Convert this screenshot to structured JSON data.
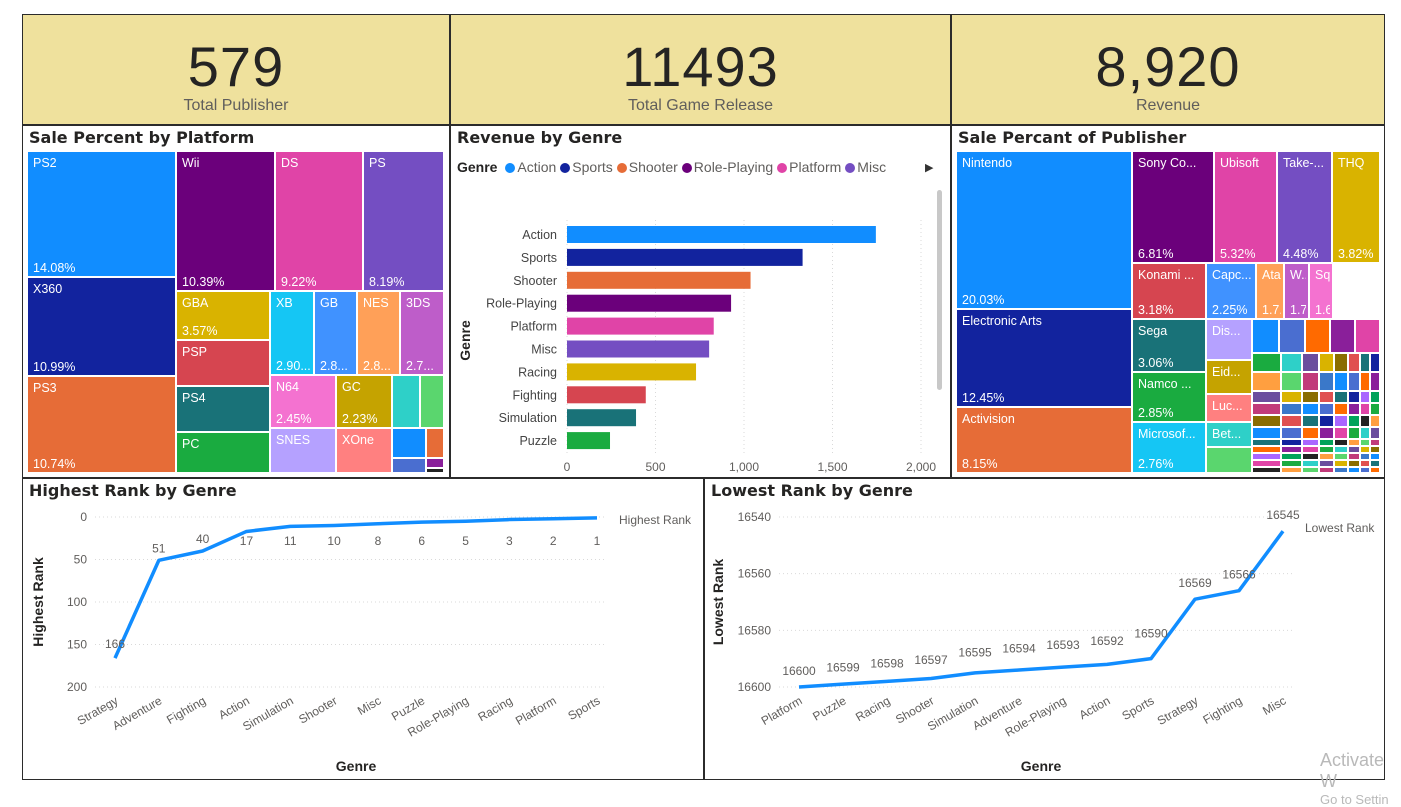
{
  "kpis": {
    "publisher": {
      "value": "579",
      "label": "Total Publisher"
    },
    "release": {
      "value": "11493",
      "label": "Total Game Release"
    },
    "revenue": {
      "value": "8,920",
      "label": "Revenue"
    }
  },
  "platform_panel": {
    "title": "Sale Percent by Platform",
    "cells": [
      {
        "name": "PS2",
        "pct": "14.08%",
        "color": "#118dff"
      },
      {
        "name": "X360",
        "pct": "10.99%",
        "color": "#12239e"
      },
      {
        "name": "PS3",
        "pct": "10.74%",
        "color": "#e66c37"
      },
      {
        "name": "Wii",
        "pct": "10.39%",
        "color": "#6b007b"
      },
      {
        "name": "DS",
        "pct": "9.22%",
        "color": "#e044a7"
      },
      {
        "name": "PS",
        "pct": "8.19%",
        "color": "#744ec2"
      },
      {
        "name": "GBA",
        "pct": "3.57%",
        "color": "#d9b300"
      },
      {
        "name": "PSP",
        "pct": "",
        "color": "#d64550"
      },
      {
        "name": "PS4",
        "pct": "",
        "color": "#197278"
      },
      {
        "name": "PC",
        "pct": "",
        "color": "#1aab40"
      },
      {
        "name": "XB",
        "pct": "2.90...",
        "color": "#15c6f4"
      },
      {
        "name": "GB",
        "pct": "2.8...",
        "color": "#4092ff"
      },
      {
        "name": "NES",
        "pct": "2.8...",
        "color": "#ffa058"
      },
      {
        "name": "3DS",
        "pct": "2.7...",
        "color": "#be5dc9"
      },
      {
        "name": "N64",
        "pct": "2.45%",
        "color": "#f472d0"
      },
      {
        "name": "GC",
        "pct": "2.23%",
        "color": "#c5a300"
      },
      {
        "name": "SNES",
        "pct": "",
        "color": "#b5a1ff"
      },
      {
        "name": "XOne",
        "pct": "",
        "color": "#ff8080"
      }
    ]
  },
  "genre_panel": {
    "title": "Revenue by Genre",
    "legend_title": "Genre",
    "legend": [
      {
        "name": "Action",
        "color": "#118dff"
      },
      {
        "name": "Sports",
        "color": "#12239e"
      },
      {
        "name": "Shooter",
        "color": "#e66c37"
      },
      {
        "name": "Role-Playing",
        "color": "#6b007b"
      },
      {
        "name": "Platform",
        "color": "#e044a7"
      },
      {
        "name": "Misc",
        "color": "#744ec2"
      }
    ]
  },
  "publisher_panel": {
    "title": "Sale Percant of Publisher",
    "cells": [
      {
        "name": "Nintendo",
        "pct": "20.03%",
        "color": "#118dff"
      },
      {
        "name": "Electronic Arts",
        "pct": "12.45%",
        "color": "#12239e"
      },
      {
        "name": "Activision",
        "pct": "8.15%",
        "color": "#e66c37"
      },
      {
        "name": "Sony Co...",
        "pct": "6.81%",
        "color": "#6b007b"
      },
      {
        "name": "Ubisoft",
        "pct": "5.32%",
        "color": "#e044a7"
      },
      {
        "name": "Take-...",
        "pct": "4.48%",
        "color": "#744ec2"
      },
      {
        "name": "THQ",
        "pct": "3.82%",
        "color": "#d9b300"
      },
      {
        "name": "Konami ...",
        "pct": "3.18%",
        "color": "#d64550"
      },
      {
        "name": "Capc...",
        "pct": "2.25%",
        "color": "#4092ff"
      },
      {
        "name": "Atari",
        "pct": "1.7...",
        "color": "#ffa058"
      },
      {
        "name": "W...",
        "pct": "1.7...",
        "color": "#be5dc9"
      },
      {
        "name": "Sq...",
        "pct": "1.6...",
        "color": "#f472d0"
      },
      {
        "name": "Sega",
        "pct": "3.06%",
        "color": "#197278"
      },
      {
        "name": "Namco ...",
        "pct": "2.85%",
        "color": "#1aab40"
      },
      {
        "name": "Microsof...",
        "pct": "2.76%",
        "color": "#15c6f4"
      },
      {
        "name": "Dis...",
        "pct": "",
        "color": "#b5a1ff"
      },
      {
        "name": "Eid...",
        "pct": "",
        "color": "#c5a300"
      },
      {
        "name": "Luc...",
        "pct": "",
        "color": "#ff8080"
      },
      {
        "name": "Bet...",
        "pct": "",
        "color": "#2ed0c8"
      }
    ]
  },
  "highest_panel": {
    "title": "Highest Rank by Genre",
    "series_label": "Highest Rank"
  },
  "lowest_panel": {
    "title": "Lowest Rank by Genre",
    "series_label": "Lowest Rank"
  },
  "watermark": {
    "line1": "Activate W",
    "line2": "Go to Settin"
  },
  "chart_data": [
    {
      "type": "bar",
      "orientation": "horizontal",
      "title": "Revenue by Genre",
      "categories": [
        "Action",
        "Sports",
        "Shooter",
        "Role-Playing",
        "Platform",
        "Misc",
        "Racing",
        "Fighting",
        "Simulation",
        "Puzzle"
      ],
      "values": [
        1745,
        1331,
        1037,
        927,
        829,
        803,
        729,
        445,
        390,
        243
      ],
      "colors": [
        "#118dff",
        "#12239e",
        "#e66c37",
        "#6b007b",
        "#e044a7",
        "#744ec2",
        "#d9b300",
        "#d64550",
        "#197278",
        "#1aab40"
      ],
      "xlabel": "Revenue",
      "ylabel": "Genre",
      "xlim": [
        0,
        2000
      ],
      "xticks": [
        "0",
        "500",
        "1,000",
        "1,500",
        "2,000"
      ],
      "grid": true
    },
    {
      "type": "line",
      "title": "Highest Rank by Genre",
      "categories": [
        "Strategy",
        "Adventure",
        "Fighting",
        "Action",
        "Simulation",
        "Shooter",
        "Misc",
        "Puzzle",
        "Role-Playing",
        "Racing",
        "Platform",
        "Sports"
      ],
      "values": [
        166,
        51,
        40,
        17,
        11,
        10,
        8,
        6,
        5,
        3,
        2,
        1
      ],
      "xlabel": "Genre",
      "ylabel": "Highest Rank",
      "ylim": [
        0,
        200
      ],
      "yticks": [
        0,
        50,
        100,
        150,
        200
      ],
      "y_reversed": true,
      "series_name": "Highest Rank"
    },
    {
      "type": "line",
      "title": "Lowest Rank by Genre",
      "categories": [
        "Platform",
        "Puzzle",
        "Racing",
        "Shooter",
        "Simulation",
        "Adventure",
        "Role-Playing",
        "Action",
        "Sports",
        "Strategy",
        "Fighting",
        "Misc"
      ],
      "values": [
        16600,
        16599,
        16598,
        16597,
        16595,
        16594,
        16593,
        16592,
        16590,
        16569,
        16566,
        16545
      ],
      "xlabel": "Genre",
      "ylabel": "Lowest Rank",
      "ylim": [
        16540,
        16600
      ],
      "yticks": [
        16540,
        16560,
        16580,
        16600
      ],
      "y_reversed": true,
      "series_name": "Lowest Rank"
    }
  ]
}
